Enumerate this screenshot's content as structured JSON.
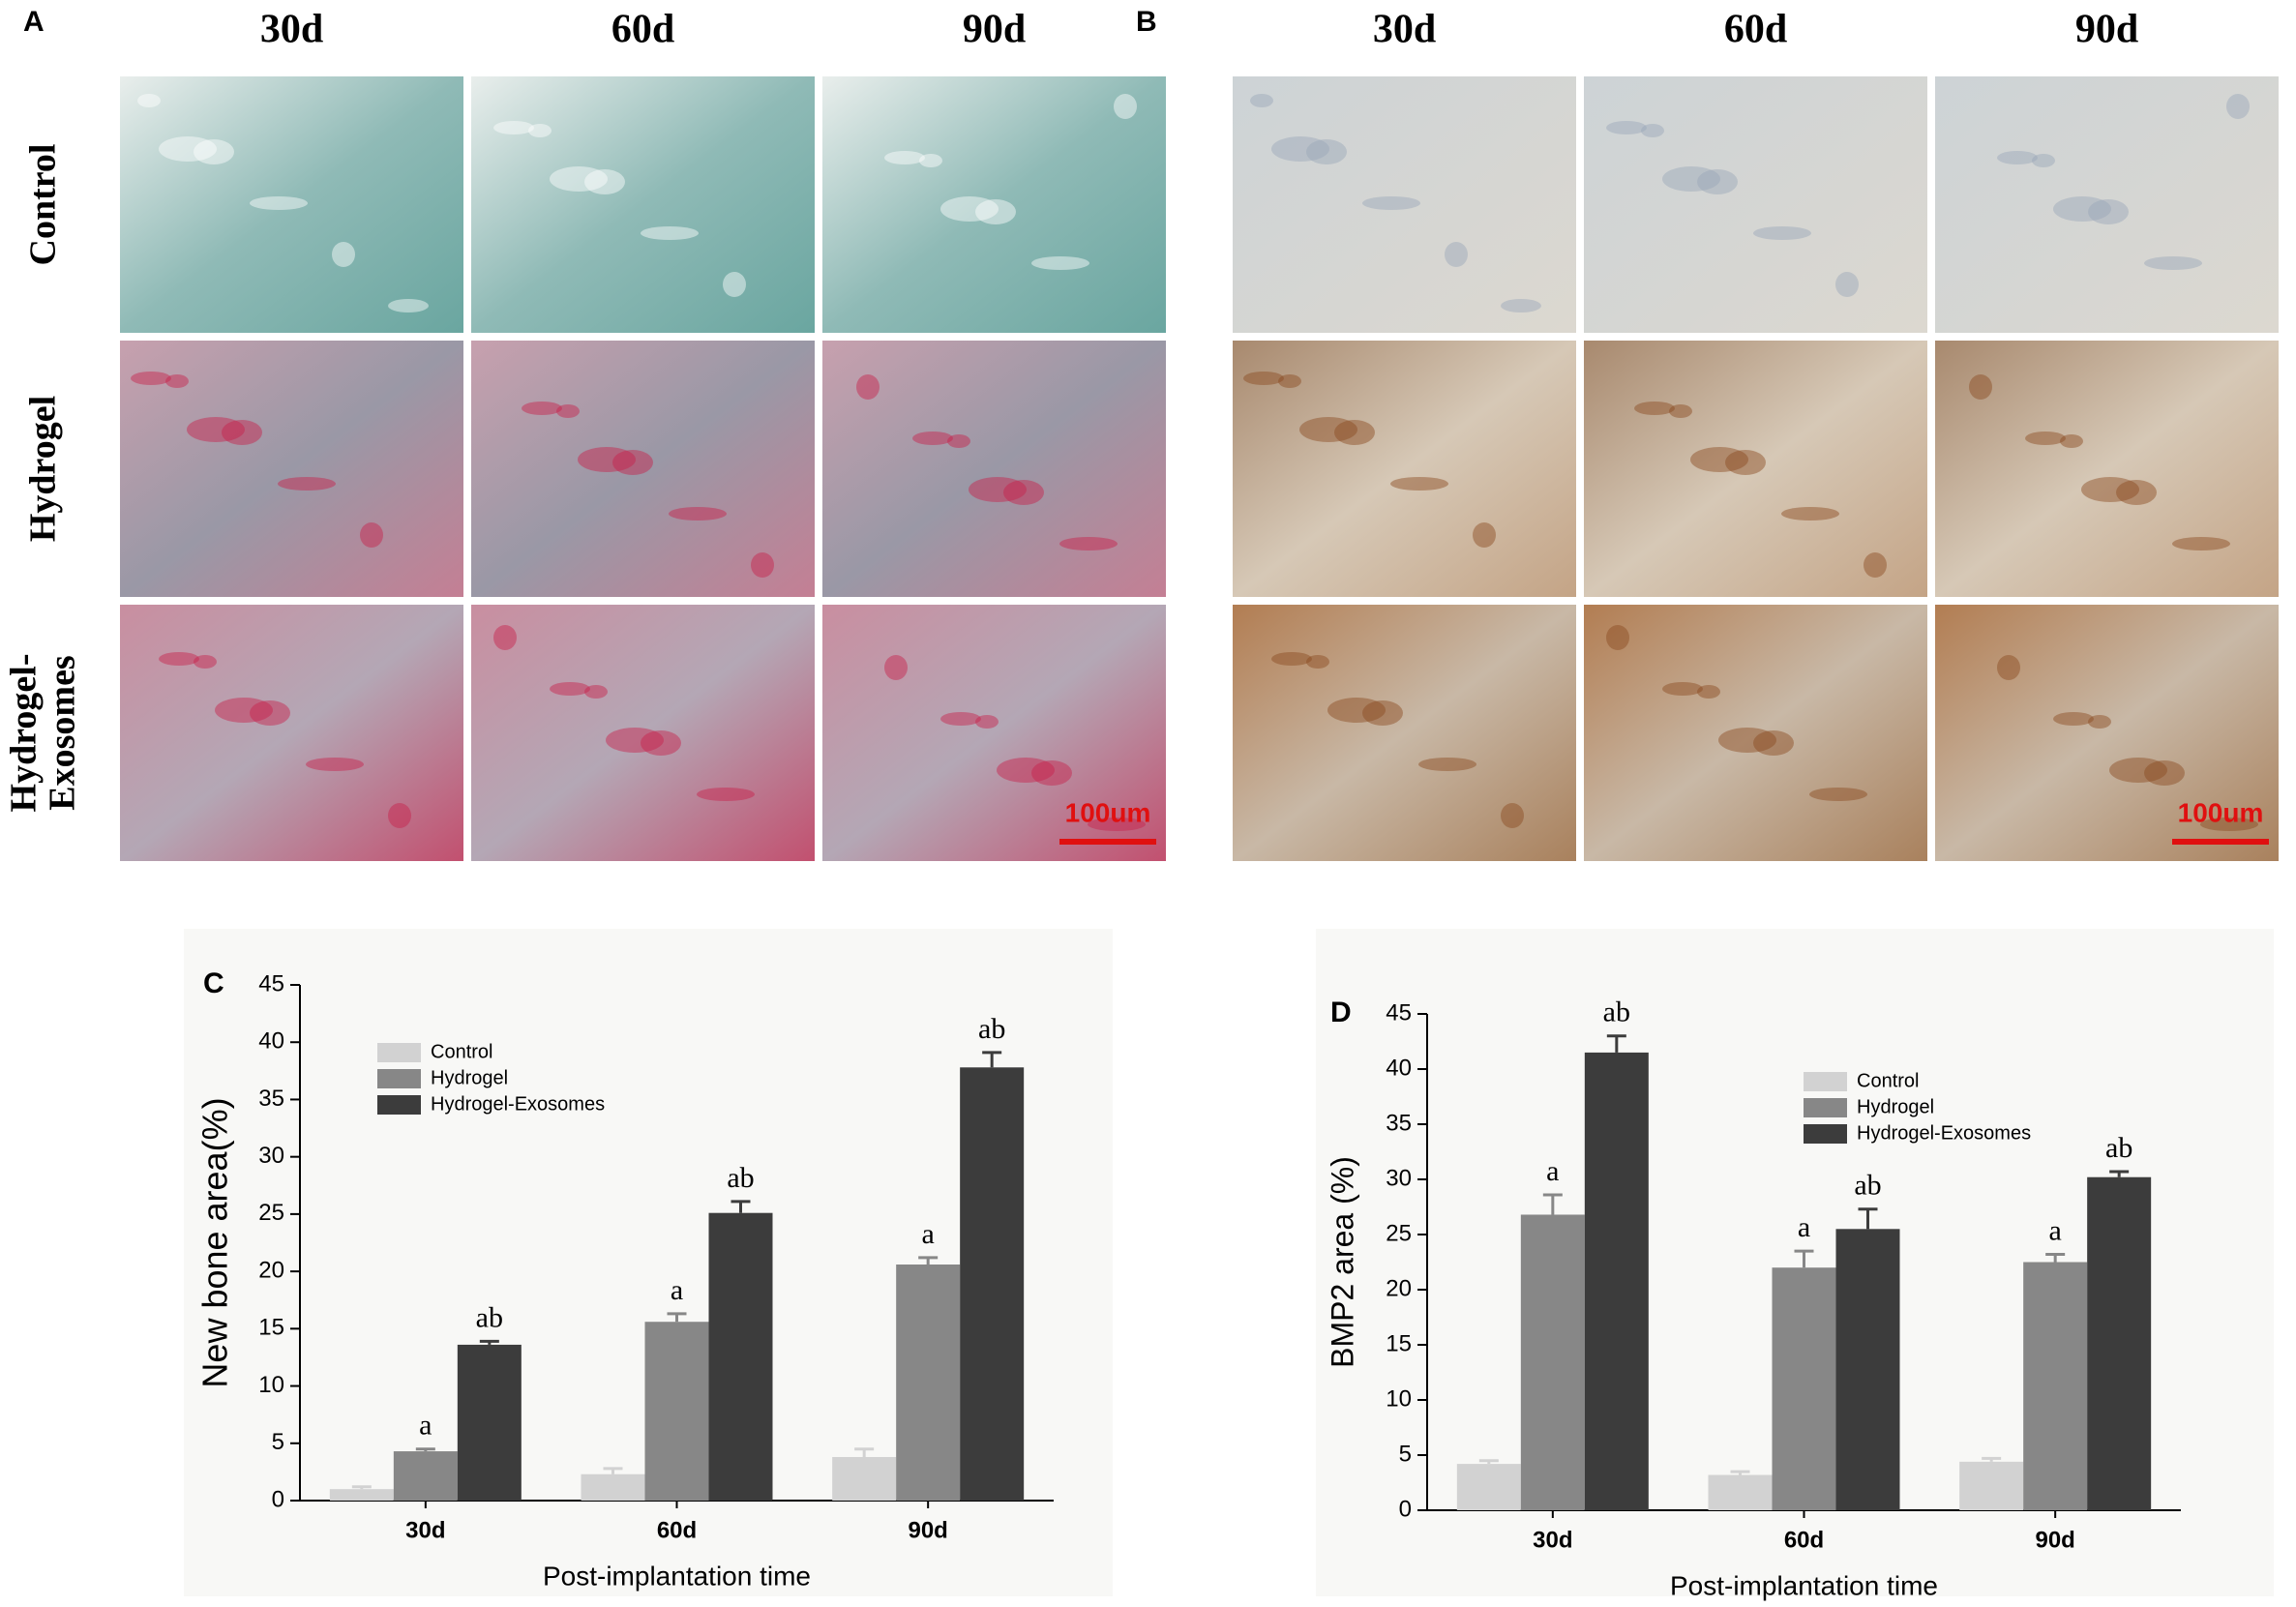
{
  "figure": {
    "panels": [
      {
        "letter": "A",
        "columns": [
          "30d",
          "60d",
          "90d"
        ],
        "rows": [
          [
            "Control"
          ],
          [
            "Hydrogel"
          ],
          [
            "Hydrogel-",
            "Exosomes"
          ]
        ],
        "scale_bar": "100um"
      },
      {
        "letter": "B",
        "columns": [
          "30d",
          "60d",
          "90d"
        ],
        "scale_bar": "100um"
      }
    ]
  },
  "chart_data": [
    {
      "type": "bar",
      "panel_label": "C",
      "ylabel": "New bone area(%)",
      "xlabel": "Post-implantation time",
      "categories": [
        "30d",
        "60d",
        "90d"
      ],
      "series": [
        {
          "name": "Control",
          "color": "#d2d2d2",
          "values": [
            1.0,
            2.3,
            3.8
          ],
          "errors": [
            0.2,
            0.5,
            0.7
          ]
        },
        {
          "name": "Hydrogel",
          "color": "#878787",
          "values": [
            4.3,
            15.6,
            20.6
          ],
          "errors": [
            0.2,
            0.7,
            0.6
          ],
          "annotations": [
            "a",
            "a",
            "a"
          ]
        },
        {
          "name": "Hydrogel-Exosomes",
          "color": "#3c3c3c",
          "values": [
            13.6,
            25.1,
            37.8
          ],
          "errors": [
            0.3,
            1.0,
            1.3
          ],
          "annotations": [
            "ab",
            "ab",
            "ab"
          ]
        }
      ],
      "ylim": [
        0,
        45
      ],
      "yticks": [
        0,
        5,
        10,
        15,
        20,
        25,
        30,
        35,
        40,
        45
      ],
      "legend": "upper left"
    },
    {
      "type": "bar",
      "panel_label": "D",
      "ylabel": "BMP2 area  (%)",
      "xlabel": "Post-implantation time",
      "categories": [
        "30d",
        "60d",
        "90d"
      ],
      "series": [
        {
          "name": "Control",
          "color": "#d2d2d2",
          "values": [
            4.2,
            3.2,
            4.4
          ],
          "errors": [
            0.3,
            0.3,
            0.3
          ]
        },
        {
          "name": "Hydrogel",
          "color": "#878787",
          "values": [
            26.8,
            22.0,
            22.5
          ],
          "errors": [
            1.8,
            1.5,
            0.7
          ],
          "annotations": [
            "a",
            "a",
            "a"
          ]
        },
        {
          "name": "Hydrogel-Exosomes",
          "color": "#3c3c3c",
          "values": [
            41.5,
            25.5,
            30.2
          ],
          "errors": [
            1.5,
            1.8,
            0.5
          ],
          "annotations": [
            "ab",
            "ab",
            "ab"
          ]
        }
      ],
      "ylim": [
        0,
        45
      ],
      "yticks": [
        0,
        5,
        10,
        15,
        20,
        25,
        30,
        35,
        40,
        45
      ],
      "legend": "upper right"
    }
  ]
}
